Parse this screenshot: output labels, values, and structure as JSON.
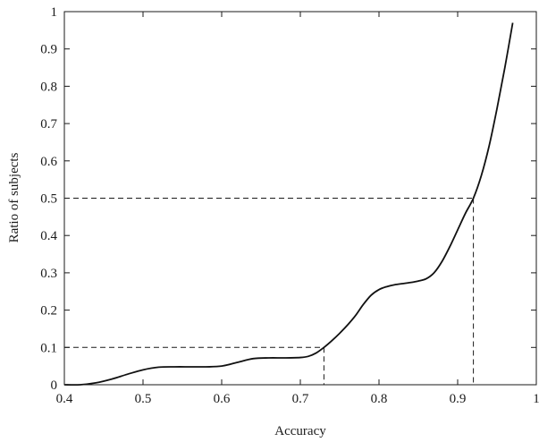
{
  "chart_data": {
    "type": "line",
    "xlabel": "Accuracy",
    "ylabel": "Ratio of subjects",
    "xlim": [
      0.4,
      1
    ],
    "ylim": [
      0,
      1
    ],
    "grid": false,
    "x_ticks": [
      0.4,
      0.5,
      0.6,
      0.7,
      0.8,
      0.9,
      1
    ],
    "x_tick_labels": [
      "0.4",
      "0.5",
      "0.6",
      "0.7",
      "0.8",
      "0.9",
      "1"
    ],
    "y_ticks": [
      0,
      0.1,
      0.2,
      0.3,
      0.4,
      0.5,
      0.6,
      0.7,
      0.8,
      0.9,
      1
    ],
    "y_tick_labels": [
      "0",
      "0.1",
      "0.2",
      "0.3",
      "0.4",
      "0.5",
      "0.6",
      "0.7",
      "0.8",
      "0.9",
      "1"
    ],
    "series": [
      {
        "x": [
          0.4,
          0.42,
          0.44,
          0.46,
          0.48,
          0.5,
          0.52,
          0.54,
          0.56,
          0.58,
          0.6,
          0.62,
          0.64,
          0.66,
          0.68,
          0.7,
          0.71,
          0.72,
          0.73,
          0.74,
          0.75,
          0.76,
          0.77,
          0.78,
          0.79,
          0.8,
          0.81,
          0.82,
          0.83,
          0.84,
          0.85,
          0.86,
          0.87,
          0.88,
          0.89,
          0.9,
          0.91,
          0.92,
          0.93,
          0.94,
          0.95,
          0.96,
          0.97
        ],
        "y": [
          0.0,
          0.0,
          0.005,
          0.015,
          0.028,
          0.04,
          0.047,
          0.048,
          0.048,
          0.048,
          0.05,
          0.06,
          0.07,
          0.072,
          0.072,
          0.073,
          0.076,
          0.085,
          0.1,
          0.118,
          0.138,
          0.16,
          0.185,
          0.215,
          0.24,
          0.255,
          0.263,
          0.268,
          0.271,
          0.274,
          0.278,
          0.284,
          0.3,
          0.33,
          0.37,
          0.415,
          0.46,
          0.5,
          0.56,
          0.64,
          0.74,
          0.85,
          0.97
        ]
      }
    ],
    "reference_lines": [
      {
        "x": 0.73,
        "y": 0.1
      },
      {
        "x": 0.92,
        "y": 0.5
      }
    ]
  }
}
